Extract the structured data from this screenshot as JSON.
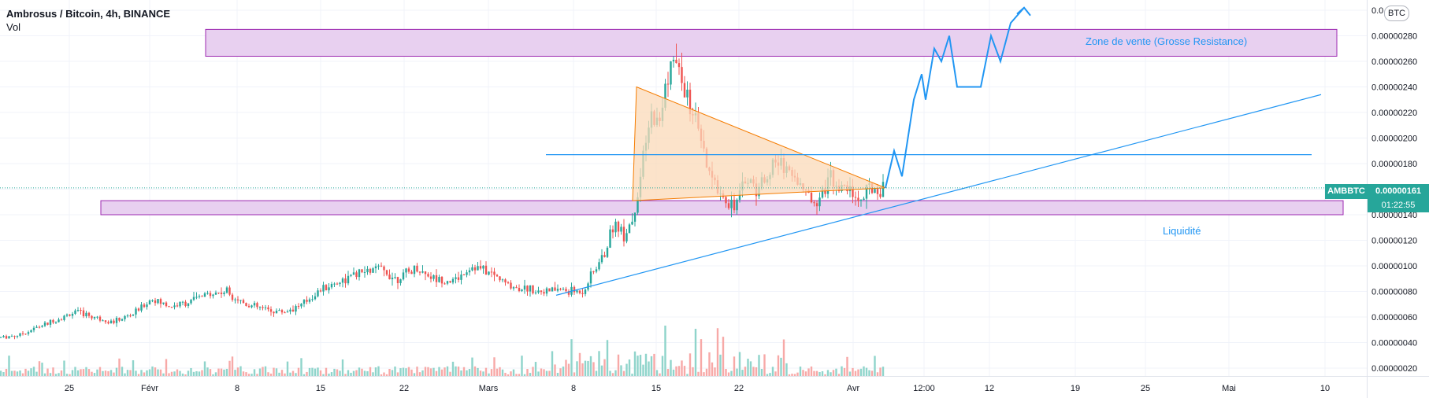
{
  "legend": {
    "title": "Ambrosus / Bitcoin, 4h, BINANCE",
    "volume_label": "Vol"
  },
  "scale_badge": "BTC",
  "last_price": {
    "symbol": "AMBBTC",
    "value": "0.00000161",
    "countdown": "01:22:55"
  },
  "annotations": {
    "resistance_zone": "Zone de vente (Grosse Resistance)",
    "support_zone": "Liquidité"
  },
  "colors": {
    "up": "#26a69a",
    "down": "#ef5350",
    "up_vol": "#8fd4cb",
    "down_vol": "#f7a9a7",
    "zone_fill": "#e8d0f0",
    "zone_border": "#9c27b0",
    "line": "#2196f3",
    "triangle": "#f57c00",
    "triangle_fill": "#fbd9b8"
  },
  "chart_data": {
    "type": "candlestick",
    "title": "Ambrosus / Bitcoin, 4h, BINANCE",
    "y_axis": {
      "ticks": [
        "0.00000020",
        "0.00000040",
        "0.00000060",
        "0.00000080",
        "0.00000100",
        "0.00000120",
        "0.00000140",
        "0.00000160",
        "0.00000180",
        "0.00000200",
        "0.00000220",
        "0.00000240",
        "0.00000260",
        "0.00000280",
        "0.0··00"
      ],
      "tick_values": [
        2e-07,
        4e-07,
        6e-07,
        8e-07,
        1e-06,
        1.2e-06,
        1.4e-06,
        1.6e-06,
        1.8e-06,
        2e-06,
        2.2e-06,
        2.4e-06,
        2.6e-06,
        2.8e-06,
        3e-06
      ],
      "range": [
        1.9e-07,
        3.02e-06
      ]
    },
    "x_axis": {
      "ticks": [
        "25",
        "Févr",
        "8",
        "15",
        "22",
        "Mars",
        "8",
        "15",
        "22",
        "Avr",
        "12:00",
        "12",
        "19",
        "25",
        "Mai",
        "10"
      ]
    },
    "price_path": [
      [
        0,
        4.4e-07
      ],
      [
        24,
        4.6e-07
      ],
      [
        48,
        5.2e-07
      ],
      [
        72,
        5.8e-07
      ],
      [
        96,
        6.4e-07
      ],
      [
        120,
        6e-07
      ],
      [
        144,
        5.6e-07
      ],
      [
        168,
        6.2e-07
      ],
      [
        192,
        7.4e-07
      ],
      [
        216,
        6.8e-07
      ],
      [
        240,
        7.2e-07
      ],
      [
        264,
        7.8e-07
      ],
      [
        288,
        8e-07
      ],
      [
        312,
        7e-07
      ],
      [
        336,
        6.6e-07
      ],
      [
        360,
        6.4e-07
      ],
      [
        384,
        7e-07
      ],
      [
        408,
        8.2e-07
      ],
      [
        432,
        8.8e-07
      ],
      [
        456,
        9.4e-07
      ],
      [
        480,
        9.8e-07
      ],
      [
        504,
        9e-07
      ],
      [
        528,
        9.8e-07
      ],
      [
        552,
        9e-07
      ],
      [
        576,
        8.8e-07
      ],
      [
        600,
        1e-06
      ],
      [
        624,
        9.4e-07
      ],
      [
        648,
        8.4e-07
      ],
      [
        672,
        8.2e-07
      ],
      [
        696,
        8e-07
      ],
      [
        708,
        8.2e-07
      ],
      [
        720,
        8e-07
      ],
      [
        740,
        8e-07
      ],
      [
        752,
        9.4e-07
      ],
      [
        768,
        1.1e-06
      ],
      [
        780,
        1.35e-06
      ],
      [
        792,
        1.25e-06
      ],
      [
        804,
        1.38e-06
      ],
      [
        812,
        1.65e-06
      ],
      [
        820,
        1.95e-06
      ],
      [
        828,
        2.2e-06
      ],
      [
        836,
        2.08e-06
      ],
      [
        844,
        2.38e-06
      ],
      [
        852,
        2.6e-06
      ],
      [
        860,
        2.55e-06
      ],
      [
        868,
        2.38e-06
      ],
      [
        876,
        2.25e-06
      ],
      [
        884,
        2.1e-06
      ],
      [
        892,
        1.9e-06
      ],
      [
        900,
        1.7e-06
      ],
      [
        912,
        1.6e-06
      ],
      [
        924,
        1.5e-06
      ],
      [
        936,
        1.5e-06
      ],
      [
        948,
        1.7e-06
      ],
      [
        960,
        1.6e-06
      ],
      [
        972,
        1.7e-06
      ],
      [
        984,
        1.8e-06
      ],
      [
        996,
        1.8e-06
      ],
      [
        1008,
        1.7e-06
      ],
      [
        1020,
        1.6e-06
      ],
      [
        1032,
        1.5e-06
      ],
      [
        1044,
        1.6e-06
      ],
      [
        1056,
        1.7e-06
      ],
      [
        1068,
        1.6e-06
      ],
      [
        1080,
        1.6e-06
      ],
      [
        1092,
        1.5e-06
      ],
      [
        1104,
        1.6e-06
      ],
      [
        1116,
        1.6e-06
      ],
      [
        1124,
        1.61e-06
      ]
    ],
    "drawings": {
      "resistance_zone": [
        2.64e-06,
        2.85e-06
      ],
      "support_zone": [
        1.4e-06,
        1.51e-06
      ],
      "horizontal_level": 1.87e-06,
      "projection_path": [
        [
          1124,
          1.61e-06
        ],
        [
          1135,
          1.9e-06
        ],
        [
          1145,
          1.7e-06
        ],
        [
          1160,
          2.3e-06
        ],
        [
          1170,
          2.5e-06
        ],
        [
          1175,
          2.3e-06
        ],
        [
          1186,
          2.7e-06
        ],
        [
          1195,
          2.6e-06
        ],
        [
          1205,
          2.8e-06
        ],
        [
          1215,
          2.4e-06
        ],
        [
          1230,
          2.4e-06
        ],
        [
          1245,
          2.4e-06
        ],
        [
          1258,
          2.8e-06
        ],
        [
          1270,
          2.6e-06
        ],
        [
          1283,
          2.9e-06
        ],
        [
          1300,
          3.02e-06
        ]
      ]
    }
  }
}
